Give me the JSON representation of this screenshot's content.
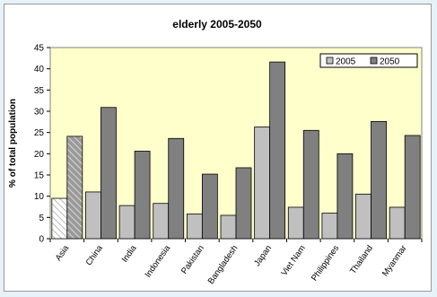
{
  "chart_data": {
    "type": "bar",
    "title": "elderly 2005-2050",
    "xlabel": "",
    "ylabel": "% of total population",
    "ylim": [
      0,
      45
    ],
    "yticks": [
      0,
      5,
      10,
      15,
      20,
      25,
      30,
      35,
      40,
      45
    ],
    "categories": [
      "Asia",
      "China",
      "India",
      "Indonesia",
      "Pakistan",
      "Bangladesh",
      "Japan",
      "Viet Nam",
      "Philippines",
      "Thailand",
      "Myanmar"
    ],
    "series": [
      {
        "name": "2005",
        "values": [
          9.5,
          11.0,
          7.8,
          8.3,
          5.8,
          5.5,
          26.3,
          7.4,
          6.0,
          10.5,
          7.4
        ]
      },
      {
        "name": "2050",
        "values": [
          24.1,
          30.9,
          20.6,
          23.6,
          15.2,
          16.7,
          41.6,
          25.5,
          20.0,
          27.6,
          24.3
        ]
      }
    ],
    "grid": false,
    "legend_position": "top-right",
    "colors": {
      "series_2005": "#c0c0c0",
      "series_2050": "#808080",
      "plot_background": "#ffffcc",
      "page_background": "#e6f1f8"
    }
  }
}
